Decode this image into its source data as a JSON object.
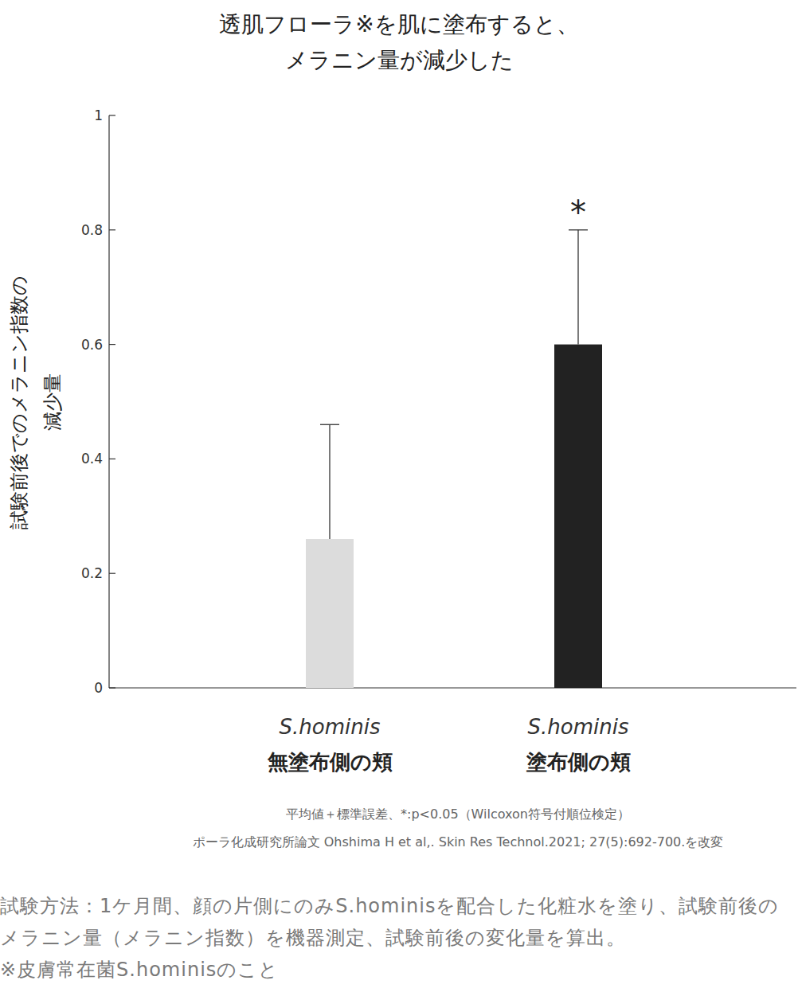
{
  "chart_data": {
    "type": "bar",
    "title": "透肌フローラ※を肌に塗布すると、\nメラニン量が減少した",
    "y_label": "試験前後でのメラニン指数の\n減少量",
    "categories": [
      "S.hominis\n無塗布側の頬",
      "S.hominis\n塗布側の頬"
    ],
    "values": [
      0.26,
      0.6
    ],
    "errors": [
      0.2,
      0.2
    ],
    "colors": [
      "#dcdcdc",
      "#222222"
    ],
    "ylim": [
      0,
      1
    ],
    "yticks": [
      0,
      0.2,
      0.4,
      0.6,
      0.8,
      1
    ],
    "grid": false,
    "annotations": [
      {
        "text": "*",
        "index": 1
      }
    ],
    "notes": [
      "平均値＋標準誤差、*:p<0.05（Wilcoxon符号付順位検定）",
      "ポーラ化成研究所論文 Ohshima H et al,. Skin Res Technol.2021; 27(5):692-700.を改変"
    ],
    "method": "試験方法：1ケ月間、顔の片側にのみS.hominisを配合した化粧水を塗り、試験前後のメラニン量（メラニン指数）を機器測定、試験前後の変化量を算出。",
    "footnote": "※皮膚常在菌S.hominisのこと"
  }
}
